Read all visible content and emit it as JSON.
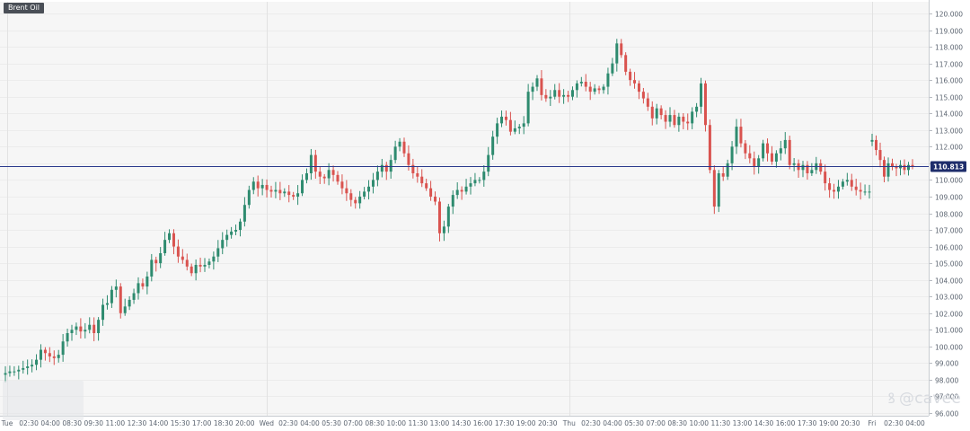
{
  "symbol": "Brent Oil",
  "watermark": "@cavee",
  "colors": {
    "up": "#2e8b6f",
    "down": "#d9534f",
    "grid": "#ececec",
    "background": "#f6f6f6",
    "price_line": "#2b3a8c",
    "price_label_bg": "#1e2d6b"
  },
  "chart_data": {
    "type": "candlestick",
    "y_axis": {
      "min": 96,
      "max": 120,
      "step": 1,
      "position": "right",
      "format": "3-decimals"
    },
    "current_price": 110.813,
    "grid": true,
    "time_labels": [
      "Tue",
      "02:30",
      "04:00",
      "08:30",
      "09:30",
      "11:00",
      "12:30",
      "14:00",
      "15:30",
      "17:00",
      "18:30",
      "20:00",
      "Wed",
      "02:30",
      "04:00",
      "05:30",
      "07:00",
      "08:30",
      "10:00",
      "11:30",
      "13:00",
      "14:30",
      "16:00",
      "17:30",
      "19:00",
      "20:30",
      "Thu",
      "02:30",
      "04:00",
      "05:30",
      "07:00",
      "08:30",
      "10:00",
      "11:30",
      "13:00",
      "14:30",
      "16:00",
      "17:30",
      "19:00",
      "20:30",
      "Fri",
      "02:30",
      "04:00"
    ],
    "series": [
      {
        "segment": "Tue",
        "closes": [
          98.4,
          98.5,
          98.5,
          98.6,
          98.7,
          98.8,
          98.9,
          99.2,
          99.8,
          99.6,
          99.4,
          99.3,
          99.5,
          100.3,
          100.8,
          101.0,
          101.2,
          100.9,
          101.0,
          101.3,
          100.8,
          101.6,
          102.5,
          102.6,
          103.4,
          103.6,
          102.0,
          102.4,
          102.8,
          103.2,
          103.8,
          103.6,
          104.2,
          105.2,
          105.0,
          105.6,
          106.4,
          106.8,
          106.0,
          105.4,
          105.2,
          104.8,
          104.4,
          104.9,
          104.8,
          104.9,
          105.1,
          105.4,
          105.9,
          106.4,
          106.7,
          106.9,
          107.0,
          107.5,
          108.5,
          109.4,
          109.9,
          109.5,
          109.7,
          109.4,
          109.3,
          109.4,
          109.2,
          109.3,
          109.1,
          109.0,
          109.2,
          110.0,
          110.4,
          111.5,
          110.5,
          110.2,
          110.1,
          110.6,
          110.3,
          109.9,
          109.5,
          109.2,
          108.8,
          108.6,
          109.0,
          109.3,
          109.6,
          110.0,
          110.5,
          110.9,
          110.5,
          111.2,
          112.0,
          112.3,
          111.6,
          110.9,
          110.4,
          110.2,
          109.8,
          109.5,
          109.0,
          108.7,
          106.8,
          107.2,
          108.4,
          109.1,
          109.4,
          109.3,
          109.6,
          109.8,
          110.0,
          110.0,
          110.5,
          111.5,
          112.6,
          113.4,
          113.8,
          113.6,
          112.9,
          113.1,
          113.2,
          113.4,
          115.3,
          115.6,
          116.1,
          115.1,
          114.9,
          115.0,
          115.4,
          115.0,
          115.1,
          115.0,
          115.4,
          115.8,
          115.9,
          115.6,
          115.3,
          115.5,
          115.4,
          115.6,
          116.4,
          117.0,
          118.2,
          117.5,
          116.5,
          116.0,
          115.8,
          115.3,
          114.9,
          114.4,
          113.7,
          114.3,
          113.9,
          113.5,
          113.9,
          113.3,
          113.8,
          113.5,
          113.4,
          114.1,
          114.4,
          115.8,
          113.3,
          110.6,
          108.4,
          110.4,
          110.2,
          111.0,
          112.0,
          113.2,
          112.2,
          111.6,
          111.3,
          110.8,
          111.3,
          112.2,
          111.6,
          111.1,
          111.6,
          111.9,
          112.4,
          110.9,
          111.0,
          110.6,
          110.9,
          110.4,
          110.6,
          111.0,
          110.5,
          109.8,
          109.4,
          109.3,
          109.6,
          109.9,
          110.0,
          109.6,
          109.4,
          109.3,
          109.3,
          109.3
        ]
      },
      {
        "segment": "Fri",
        "closes": [
          112.4,
          111.8,
          111.2,
          110.2,
          111.0,
          110.8,
          110.7,
          110.9,
          110.6,
          110.9,
          110.813
        ]
      }
    ]
  }
}
